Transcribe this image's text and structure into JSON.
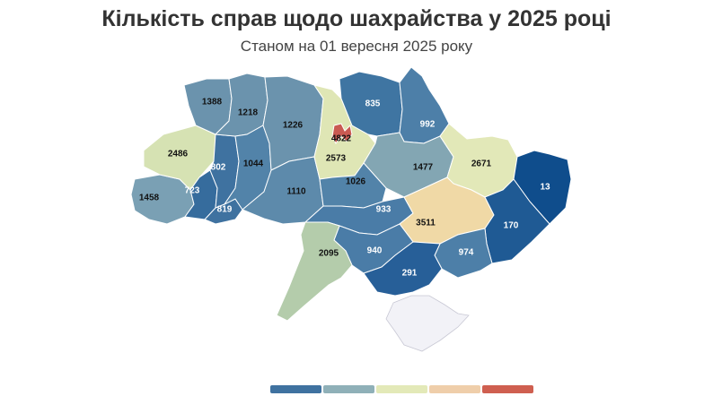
{
  "title": "Кількість справ щодо шахрайства у 2025 році",
  "subtitle": "Станом на 01 вересня 2025 року",
  "regions": [
    {
      "id": "volyn",
      "value": 1388,
      "color": "#6b93ad"
    },
    {
      "id": "rivne",
      "value": 1218,
      "color": "#6b93ad"
    },
    {
      "id": "zhytomyr",
      "value": 1226,
      "color": "#6b93ad"
    },
    {
      "id": "kyiv-oblast",
      "value": 2573,
      "color": "#dfe6b5"
    },
    {
      "id": "kyiv-city",
      "value": 4822,
      "color": "#c95a52"
    },
    {
      "id": "chernihiv",
      "value": 835,
      "color": "#3f75a2"
    },
    {
      "id": "sumy",
      "value": 992,
      "color": "#4d7fa8"
    },
    {
      "id": "lviv",
      "value": 2486,
      "color": "#d6e2b3"
    },
    {
      "id": "ternopil",
      "value": 802,
      "color": "#3f72a0"
    },
    {
      "id": "khmelnytskyi",
      "value": 1044,
      "color": "#5283a9"
    },
    {
      "id": "vinnytsia",
      "value": 1110,
      "color": "#5d8aab"
    },
    {
      "id": "cherkasy",
      "value": 1026,
      "color": "#5283a9"
    },
    {
      "id": "poltava",
      "value": 1477,
      "color": "#83a6b3"
    },
    {
      "id": "kharkiv",
      "value": 2671,
      "color": "#e2e8b8"
    },
    {
      "id": "zakarpattia",
      "value": 1458,
      "color": "#7aa0b4"
    },
    {
      "id": "ivano-frankivsk",
      "value": 723,
      "color": "#366c9d"
    },
    {
      "id": "chernivtsi",
      "value": 819,
      "color": "#3f72a0"
    },
    {
      "id": "kirovohrad",
      "value": 933,
      "color": "#4a7ca7"
    },
    {
      "id": "dnipropetrovsk",
      "value": 3511,
      "color": "#f0d9a6"
    },
    {
      "id": "luhansk",
      "value": 13,
      "color": "#0f4d8c"
    },
    {
      "id": "donetsk",
      "value": 170,
      "color": "#1f5a94"
    },
    {
      "id": "zaporizhzhia",
      "value": 974,
      "color": "#4d7fa8"
    },
    {
      "id": "mykolaiv",
      "value": 940,
      "color": "#4a7ca7"
    },
    {
      "id": "odesa",
      "value": 2095,
      "color": "#b4ccab"
    },
    {
      "id": "kherson",
      "value": 291,
      "color": "#275f98"
    },
    {
      "id": "crimea",
      "value": null,
      "color": "#f2f2f7"
    }
  ],
  "legend": {
    "colors": [
      "#3f72a0",
      "#8fb0b8",
      "#e3e9b8",
      "#efceaa",
      "#cf5f50"
    ]
  }
}
